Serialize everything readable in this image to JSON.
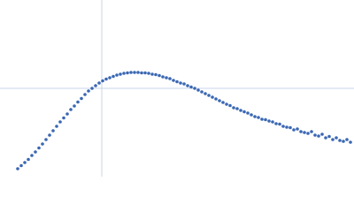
{
  "chart_data": {
    "type": "scatter",
    "color": "#3a67b3",
    "xlim": [
      0,
      400
    ],
    "ylim": [
      0,
      200
    ],
    "reference_lines": {
      "x": 115,
      "y": 100,
      "color": "#c9d5e8"
    },
    "x": [
      20,
      24,
      28,
      32,
      36,
      40,
      44,
      48,
      52,
      56,
      60,
      64,
      68,
      72,
      76,
      80,
      84,
      88,
      92,
      96,
      100,
      104,
      108,
      112,
      116,
      120,
      124,
      128,
      132,
      136,
      140,
      144,
      148,
      152,
      156,
      160,
      164,
      168,
      172,
      176,
      180,
      184,
      188,
      192,
      196,
      200,
      204,
      208,
      212,
      216,
      220,
      224,
      228,
      232,
      236,
      240,
      244,
      248,
      252,
      256,
      260,
      264,
      268,
      272,
      276,
      280,
      284,
      288,
      292,
      296,
      300,
      304,
      308,
      312,
      316,
      320,
      324,
      328,
      332,
      336,
      340,
      344,
      348,
      352,
      356,
      360,
      364,
      368,
      372,
      376,
      380,
      384,
      388,
      392,
      396
    ],
    "y": [
      9,
      12.5,
      16,
      19.5,
      24,
      28,
      32.5,
      37,
      42,
      47,
      52,
      57,
      62,
      66.5,
      71,
      76,
      80,
      84.5,
      88.5,
      93,
      97,
      100,
      103,
      106,
      108.5,
      110.5,
      112,
      113.5,
      115,
      116,
      117,
      117.5,
      118,
      118,
      118,
      117.5,
      117.5,
      117,
      116,
      115.5,
      114.5,
      113,
      112,
      111,
      109,
      107.5,
      106,
      105,
      103,
      101.5,
      100,
      98,
      96,
      94,
      92,
      90,
      88,
      86,
      84,
      82,
      80.5,
      78,
      77,
      75,
      73.5,
      72,
      70,
      68,
      67,
      65,
      64.5,
      63,
      62,
      60,
      59.5,
      57,
      56,
      55.5,
      53,
      54,
      51,
      50,
      49,
      51,
      47,
      46,
      48,
      44,
      45.5,
      42,
      44,
      41,
      40,
      42,
      39
    ]
  }
}
